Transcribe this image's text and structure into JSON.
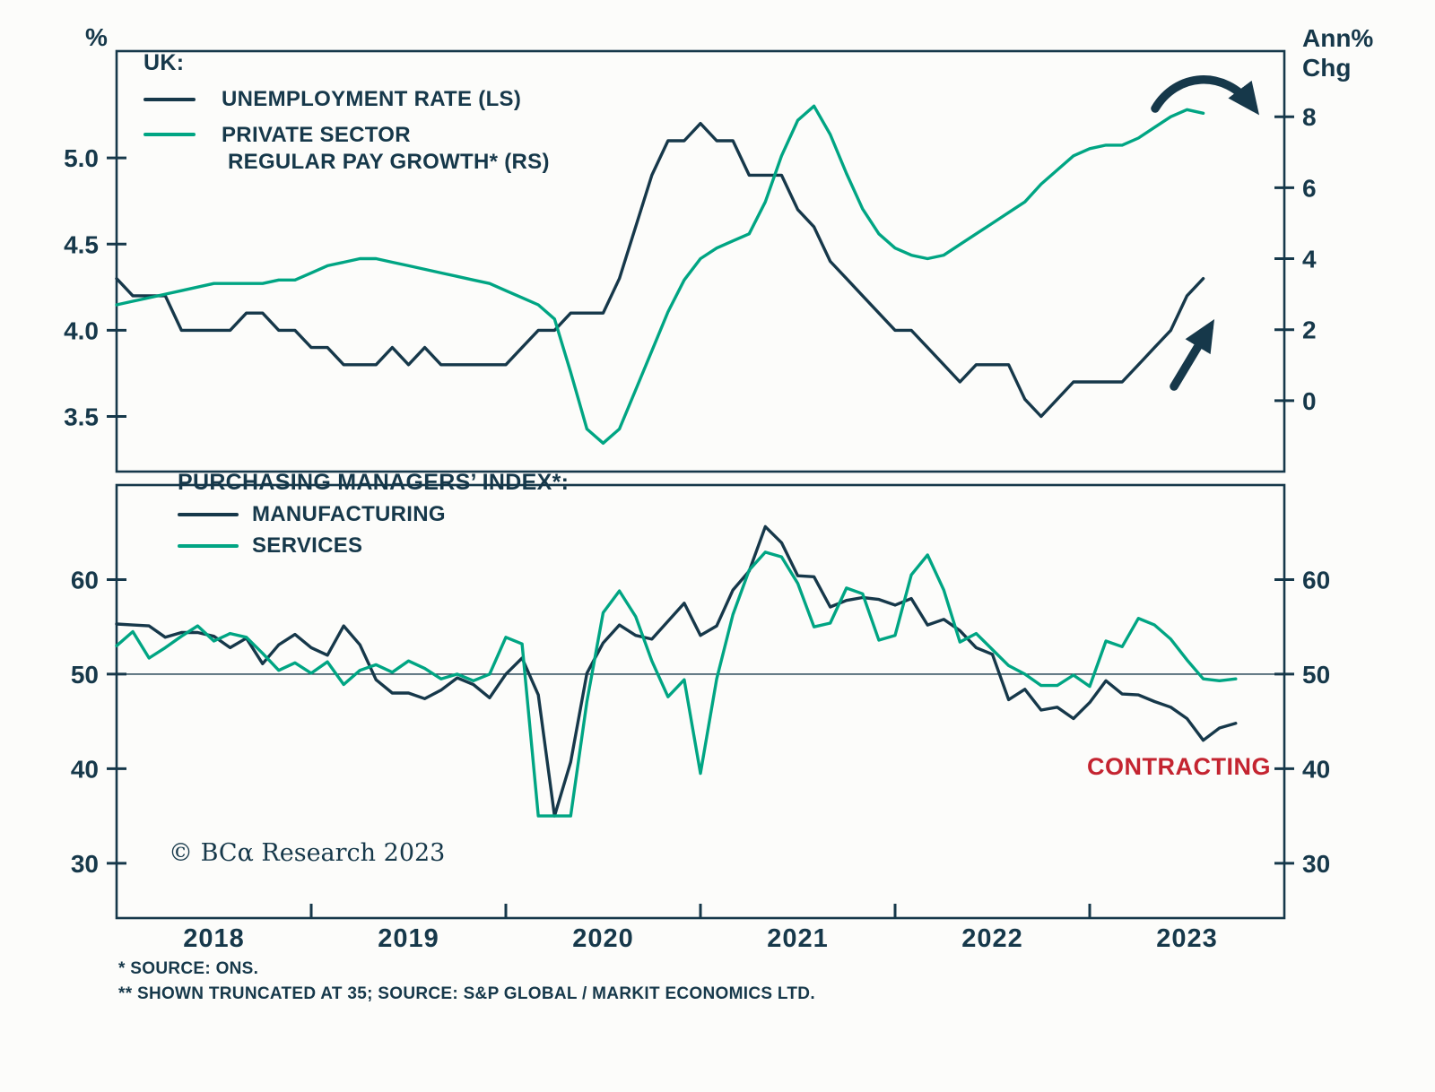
{
  "colors": {
    "navy": "#16384a",
    "green": "#00a583",
    "red": "#c42430",
    "background": "#fcfcfa"
  },
  "top_panel": {
    "left_axis_unit": "%",
    "right_axis_unit_line1": "Ann%",
    "right_axis_unit_line2": "Chg",
    "legend": {
      "title": "UK:",
      "series1_label": "UNEMPLOYMENT RATE (LS)",
      "series2_label_line1": "PRIVATE SECTOR",
      "series2_label_line2": "REGULAR PAY GROWTH* (RS)"
    }
  },
  "bottom_panel": {
    "legend_title": "PURCHASING MANAGERS’ INDEX*:",
    "series1_label": "MANUFACTURING",
    "series2_label": "SERVICES",
    "contracting_label": "CONTRACTING",
    "copyright": "© BCα Research 2023"
  },
  "x_axis": {
    "labels": [
      "2018",
      "2019",
      "2020",
      "2021",
      "2022",
      "2023"
    ],
    "range": [
      2018,
      2024
    ]
  },
  "footnotes": [
    "* SOURCE: ONS.",
    "**  SHOWN TRUNCATED AT 35; SOURCE: S&P GLOBAL / MARKIT ECONOMICS LTD."
  ],
  "chart_data": [
    {
      "type": "line",
      "panel": "top",
      "title": "UK: Unemployment Rate (LS) vs Private Sector Regular Pay Growth (RS)",
      "x_unit": "monthly, decimal years",
      "left_axis": {
        "label": "%",
        "ticks": [
          3.5,
          4.0,
          4.5,
          5.0
        ],
        "tick_labels": [
          "3.5",
          "4.0",
          "4.5",
          "5.0"
        ],
        "range": [
          3.18,
          5.62
        ]
      },
      "right_axis": {
        "label": "Ann% Chg",
        "ticks": [
          0,
          2,
          4,
          6,
          8
        ],
        "tick_labels": [
          "0",
          "2",
          "4",
          "6",
          "8"
        ],
        "range": [
          -2.0,
          9.85
        ]
      },
      "series": [
        {
          "id": "unemployment",
          "name": "UNEMPLOYMENT RATE (LS)",
          "axis": "left",
          "color_key": "navy",
          "x_start": 2018.0,
          "x_step_months": 1,
          "values": [
            4.3,
            4.2,
            4.2,
            4.2,
            4.0,
            4.0,
            4.0,
            4.0,
            4.1,
            4.1,
            4.0,
            4.0,
            3.9,
            3.9,
            3.8,
            3.8,
            3.8,
            3.9,
            3.8,
            3.9,
            3.8,
            3.8,
            3.8,
            3.8,
            3.8,
            3.9,
            4.0,
            4.0,
            4.1,
            4.1,
            4.1,
            4.3,
            4.6,
            4.9,
            5.1,
            5.1,
            5.2,
            5.1,
            5.1,
            4.9,
            4.9,
            4.9,
            4.7,
            4.6,
            4.4,
            4.3,
            4.2,
            4.1,
            4.0,
            4.0,
            3.9,
            3.8,
            3.7,
            3.8,
            3.8,
            3.8,
            3.6,
            3.5,
            3.6,
            3.7,
            3.7,
            3.7,
            3.7,
            3.8,
            3.9,
            4.0,
            4.2,
            4.3
          ]
        },
        {
          "id": "pay-growth",
          "name": "PRIVATE SECTOR REGULAR PAY GROWTH* (RS)",
          "axis": "right",
          "color_key": "green",
          "x_start": 2018.0,
          "x_step_months": 1,
          "values": [
            2.7,
            2.8,
            2.9,
            3.0,
            3.1,
            3.2,
            3.3,
            3.3,
            3.3,
            3.3,
            3.4,
            3.4,
            3.6,
            3.8,
            3.9,
            4.0,
            4.0,
            3.9,
            3.8,
            3.7,
            3.6,
            3.5,
            3.4,
            3.3,
            3.1,
            2.9,
            2.7,
            2.3,
            0.8,
            -0.8,
            -1.2,
            -0.8,
            0.3,
            1.4,
            2.5,
            3.4,
            4.0,
            4.3,
            4.5,
            4.7,
            5.6,
            6.9,
            7.9,
            8.3,
            7.5,
            6.4,
            5.4,
            4.7,
            4.3,
            4.1,
            4.0,
            4.1,
            4.4,
            4.7,
            5.0,
            5.3,
            5.6,
            6.1,
            6.5,
            6.9,
            7.1,
            7.2,
            7.2,
            7.4,
            7.7,
            8.0,
            8.2,
            8.1
          ]
        }
      ],
      "annotations": [
        "hand-drawn arrow curling downward over pay growth line end",
        "hand-drawn arrow pointing up along unemployment line end"
      ]
    },
    {
      "type": "line",
      "panel": "bottom",
      "title": "PURCHASING MANAGERS’ INDEX*",
      "x_unit": "monthly, decimal years",
      "left_axis": {
        "ticks": [
          30,
          40,
          50,
          60
        ],
        "tick_labels": [
          "30",
          "40",
          "50",
          "60"
        ],
        "range": [
          24.2,
          70.0
        ]
      },
      "right_axis": {
        "ticks": [
          30,
          40,
          50,
          60
        ],
        "tick_labels": [
          "30",
          "40",
          "50",
          "60"
        ],
        "range": [
          24.2,
          70.0
        ]
      },
      "reference_line": 50,
      "truncated_at": 35,
      "series": [
        {
          "id": "manufacturing",
          "name": "MANUFACTURING",
          "axis": "left",
          "color_key": "navy",
          "x_start": 2018.0,
          "x_step_months": 1,
          "values": [
            55.3,
            55.2,
            55.1,
            53.9,
            54.4,
            54.4,
            54.0,
            52.8,
            53.8,
            51.1,
            53.1,
            54.2,
            52.8,
            52.0,
            55.1,
            53.1,
            49.4,
            48.0,
            48.0,
            47.4,
            48.3,
            49.6,
            48.9,
            47.5,
            50.0,
            51.7,
            47.8,
            35.0,
            40.7,
            50.1,
            53.3,
            55.2,
            54.1,
            53.7,
            55.6,
            57.5,
            54.1,
            55.1,
            58.9,
            60.9,
            65.6,
            63.9,
            60.4,
            60.3,
            57.1,
            57.8,
            58.1,
            57.9,
            57.3,
            58.0,
            55.2,
            55.8,
            54.6,
            52.8,
            52.1,
            47.3,
            48.4,
            46.2,
            46.5,
            45.3,
            47.0,
            49.3,
            47.9,
            47.8,
            47.1,
            46.5,
            45.3,
            43.0,
            44.3,
            44.8
          ]
        },
        {
          "id": "services",
          "name": "SERVICES",
          "axis": "left",
          "color_key": "green",
          "x_start": 2018.0,
          "x_step_months": 1,
          "values": [
            53.0,
            54.5,
            51.7,
            52.8,
            54.0,
            55.1,
            53.5,
            54.3,
            53.9,
            52.2,
            50.4,
            51.2,
            50.1,
            51.3,
            48.9,
            50.4,
            51.0,
            50.2,
            51.4,
            50.6,
            49.5,
            50.0,
            49.3,
            50.0,
            53.9,
            53.2,
            35.0,
            35.0,
            35.0,
            47.1,
            56.5,
            58.8,
            56.1,
            51.4,
            47.6,
            49.4,
            39.5,
            49.5,
            56.3,
            61.0,
            62.9,
            62.4,
            59.6,
            55.0,
            55.4,
            59.1,
            58.5,
            53.6,
            54.1,
            60.5,
            62.6,
            58.9,
            53.4,
            54.3,
            52.6,
            50.9,
            50.0,
            48.8,
            48.8,
            49.9,
            48.7,
            53.5,
            52.9,
            55.9,
            55.2,
            53.7,
            51.5,
            49.5,
            49.3,
            49.5
          ]
        }
      ],
      "annotations": [
        "CONTRACTING (values below 50 reference line)"
      ]
    }
  ]
}
